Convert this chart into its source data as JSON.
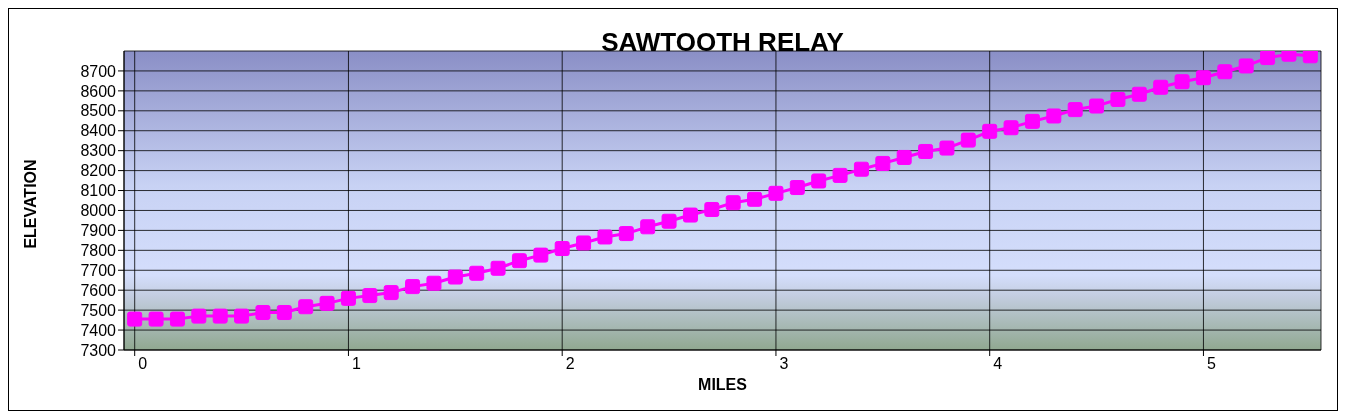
{
  "chart_data": {
    "type": "line",
    "title": "SAWTOOTH RELAY",
    "xlabel": "MILES",
    "ylabel": "ELEVATION",
    "x": [
      0,
      0.1,
      0.2,
      0.3,
      0.4,
      0.5,
      0.6,
      0.7,
      0.8,
      0.9,
      1,
      1.1,
      1.2,
      1.3,
      1.4,
      1.5,
      1.6,
      1.7,
      1.8,
      1.9,
      2,
      2.1,
      2.2,
      2.3,
      2.4,
      2.5,
      2.6,
      2.7,
      2.8,
      2.9,
      3,
      3.1,
      3.2,
      3.3,
      3.4,
      3.5,
      3.6,
      3.7,
      3.8,
      3.9,
      4,
      4.1,
      4.2,
      4.3,
      4.4,
      4.5,
      4.6,
      4.7,
      4.8,
      4.9,
      5,
      5.1,
      5.2,
      5.3,
      5.4,
      5.5
    ],
    "series": [
      {
        "color": "#ff00ff",
        "values": [
          7455,
          7455,
          7455,
          7470,
          7470,
          7470,
          7488,
          7488,
          7517,
          7534,
          7559,
          7573,
          7588,
          7618,
          7635,
          7666,
          7685,
          7710,
          7748,
          7776,
          7809,
          7837,
          7867,
          7884,
          7918,
          7946,
          7977,
          8005,
          8039,
          8056,
          8086,
          8115,
          8148,
          8176,
          8207,
          8236,
          8266,
          8296,
          8313,
          8353,
          8397,
          8415,
          8447,
          8474,
          8506,
          8524,
          8557,
          8583,
          8618,
          8646,
          8666,
          8696,
          8725,
          8767,
          8784,
          8776
        ]
      }
    ],
    "xlim": [
      -0.05,
      5.55
    ],
    "xticks": [
      0,
      1,
      2,
      3,
      4,
      5
    ],
    "ylim": [
      7300,
      8800
    ],
    "yticks": [
      7300,
      7400,
      7500,
      7600,
      7700,
      7800,
      7900,
      8000,
      8100,
      8200,
      8300,
      8400,
      8500,
      8600,
      8700
    ],
    "grid": true,
    "legend": false,
    "marker": "square",
    "line_style": "solid"
  }
}
